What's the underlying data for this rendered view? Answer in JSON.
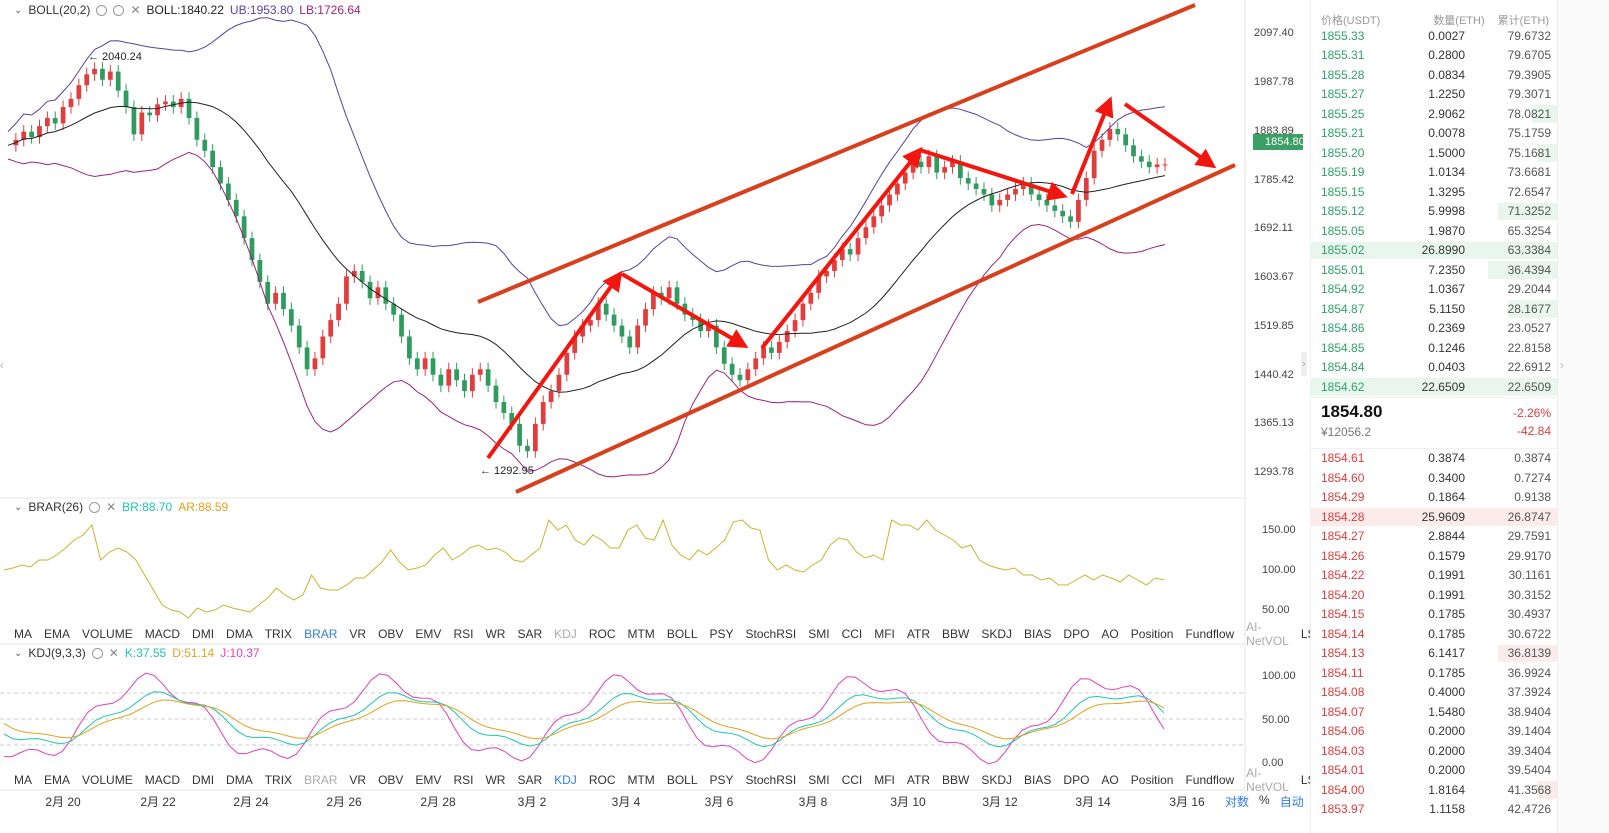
{
  "boll": {
    "title": "BOLL(20,2)",
    "values": "BOLL:1840.22",
    "ub": "UB:1953.80",
    "lb": "LB:1726.64",
    "high_marker": "← 2040.24",
    "low_marker": "← 1292.95",
    "price_axis": [
      "2097.40",
      "1987.78",
      "1883.89",
      "1785.42",
      "1692.11",
      "1603.67",
      "1519.85",
      "1440.42",
      "1365.13",
      "1293.78"
    ],
    "last_price_tag": "1854.80",
    "colors": {
      "mid": "#222222",
      "ub": "#5b3fa6",
      "lb": "#a0227a",
      "up": "#e23c3c",
      "down": "#2f9b5e",
      "annotation": "#f2160f",
      "channel": "#d6401d"
    }
  },
  "brar": {
    "title": "BRAR(26)",
    "br": "BR:88.70",
    "ar": "AR:88.59",
    "axis": [
      "150.00",
      "100.00",
      "50.00"
    ],
    "colors": {
      "line": "#c9b42c",
      "br": "#1ec6b0",
      "ar": "#e4a11b"
    }
  },
  "kdj": {
    "title": "KDJ(9,3,3)",
    "k": "K:37.55",
    "d": "D:51.14",
    "j": "J:10.37",
    "axis": [
      "100.00",
      "50.00",
      "0.00"
    ],
    "colors": {
      "k": "#1ec6b0",
      "d": "#e4a11b",
      "j": "#e040c0"
    }
  },
  "tabs": [
    "MA",
    "EMA",
    "VOLUME",
    "MACD",
    "DMI",
    "DMA",
    "TRIX",
    "BRAR",
    "VR",
    "OBV",
    "EMV",
    "RSI",
    "WR",
    "SAR",
    "KDJ",
    "ROC",
    "MTM",
    "BOLL",
    "PSY",
    "StochRSI",
    "SMI",
    "CCI",
    "MFI",
    "ATR",
    "BBW",
    "SKDJ",
    "BIAS",
    "DPO",
    "AO",
    "Position",
    "Fundflow",
    "AI-NetVOL",
    "LSUR"
  ],
  "x_axis": [
    "2月 20",
    "2月 22",
    "2月 24",
    "2月 26",
    "2月 28",
    "3月 2",
    "3月 4",
    "3月 6",
    "3月 8",
    "3月 10",
    "3月 12",
    "3月 14",
    "3月 16"
  ],
  "bottom_controls": {
    "log": "对数",
    "pct": "%",
    "auto": "自动"
  },
  "orderbook": {
    "headers": [
      "价格(USDT)",
      "数量(ETH)",
      "累计(ETH)"
    ],
    "bids_top": [
      {
        "p": "1855.33",
        "q": "0.0027",
        "c": "79.6732",
        "w": 0
      },
      {
        "p": "1855.31",
        "q": "0.2800",
        "c": "79.6705",
        "w": 0
      },
      {
        "p": "1855.28",
        "q": "0.0834",
        "c": "79.3905",
        "w": 0
      },
      {
        "p": "1855.27",
        "q": "1.2250",
        "c": "79.3071",
        "w": 0
      },
      {
        "p": "1855.25",
        "q": "2.9062",
        "c": "78.0821",
        "w": 0.1
      },
      {
        "p": "1855.21",
        "q": "0.0078",
        "c": "75.1759",
        "w": 0
      },
      {
        "p": "1855.20",
        "q": "1.5000",
        "c": "75.1681",
        "w": 0.04
      },
      {
        "p": "1855.19",
        "q": "1.0134",
        "c": "73.6681",
        "w": 0
      },
      {
        "p": "1855.15",
        "q": "1.3295",
        "c": "72.6547",
        "w": 0
      },
      {
        "p": "1855.12",
        "q": "5.9998",
        "c": "71.3252",
        "w": 0.24
      },
      {
        "p": "1855.05",
        "q": "1.9870",
        "c": "65.3254",
        "w": 0
      },
      {
        "p": "1855.02",
        "q": "26.8990",
        "c": "63.3384",
        "w": 1.0
      },
      {
        "p": "1855.01",
        "q": "7.2350",
        "c": "36.4394",
        "w": 0.28
      },
      {
        "p": "1854.92",
        "q": "1.0367",
        "c": "29.2044",
        "w": 0
      },
      {
        "p": "1854.87",
        "q": "5.1150",
        "c": "28.1677",
        "w": 0.2
      },
      {
        "p": "1854.86",
        "q": "0.2369",
        "c": "23.0527",
        "w": 0
      },
      {
        "p": "1854.85",
        "q": "0.1246",
        "c": "22.8158",
        "w": 0
      },
      {
        "p": "1854.84",
        "q": "0.0403",
        "c": "22.6912",
        "w": 0
      },
      {
        "p": "1854.62",
        "q": "22.6509",
        "c": "22.6509",
        "w": 1.0
      }
    ],
    "last_price": "1854.80",
    "fiat": "¥12056.2",
    "change_pct": "-2.26%",
    "change_val": "-42.84",
    "asks": [
      {
        "p": "1854.61",
        "q": "0.3874",
        "c": "0.3874",
        "w": 0
      },
      {
        "p": "1854.60",
        "q": "0.3400",
        "c": "0.7274",
        "w": 0
      },
      {
        "p": "1854.29",
        "q": "0.1864",
        "c": "0.9138",
        "w": 0
      },
      {
        "p": "1854.28",
        "q": "25.9609",
        "c": "26.8747",
        "w": 1.0
      },
      {
        "p": "1854.27",
        "q": "2.8844",
        "c": "29.7591",
        "w": 0
      },
      {
        "p": "1854.26",
        "q": "0.1579",
        "c": "29.9170",
        "w": 0
      },
      {
        "p": "1854.22",
        "q": "0.1991",
        "c": "30.1161",
        "w": 0
      },
      {
        "p": "1854.20",
        "q": "0.1991",
        "c": "30.3152",
        "w": 0
      },
      {
        "p": "1854.15",
        "q": "0.1785",
        "c": "30.4937",
        "w": 0
      },
      {
        "p": "1854.14",
        "q": "0.1785",
        "c": "30.6722",
        "w": 0
      },
      {
        "p": "1854.13",
        "q": "6.1417",
        "c": "36.8139",
        "w": 0.24
      },
      {
        "p": "1854.11",
        "q": "0.1785",
        "c": "36.9924",
        "w": 0
      },
      {
        "p": "1854.08",
        "q": "0.4000",
        "c": "37.3924",
        "w": 0
      },
      {
        "p": "1854.07",
        "q": "1.5480",
        "c": "38.9404",
        "w": 0
      },
      {
        "p": "1854.06",
        "q": "0.2000",
        "c": "39.1404",
        "w": 0
      },
      {
        "p": "1854.03",
        "q": "0.2000",
        "c": "39.3404",
        "w": 0
      },
      {
        "p": "1854.01",
        "q": "0.2000",
        "c": "39.5404",
        "w": 0
      },
      {
        "p": "1854.00",
        "q": "1.8164",
        "c": "41.3568",
        "w": 0.07
      },
      {
        "p": "1853.97",
        "q": "1.1158",
        "c": "42.4726",
        "w": 0
      }
    ]
  }
}
